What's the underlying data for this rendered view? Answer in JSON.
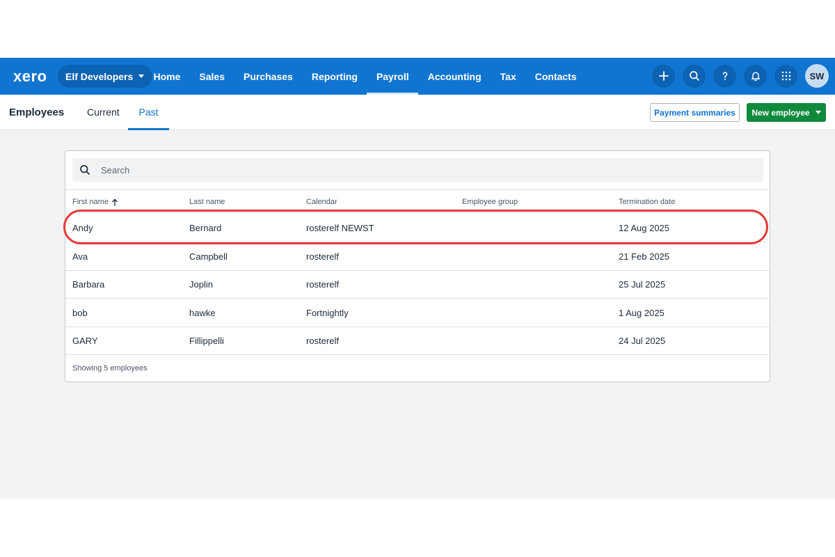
{
  "app": {
    "logo": "xero",
    "org": "Elf Developers",
    "nav": [
      "Home",
      "Sales",
      "Purchases",
      "Reporting",
      "Payroll",
      "Accounting",
      "Tax",
      "Contacts"
    ],
    "active_nav": "Payroll",
    "avatar": "SW",
    "icons": [
      "plus-icon",
      "search-icon",
      "help-icon",
      "bell-icon",
      "apps-grid-icon"
    ]
  },
  "page": {
    "title": "Employees",
    "tabs": [
      "Current",
      "Past"
    ],
    "active_tab": "Past",
    "payment_summaries_label": "Payment summaries",
    "new_employee_label": "New employee"
  },
  "search": {
    "placeholder": "Search"
  },
  "table": {
    "columns": [
      "First name",
      "Last name",
      "Calendar",
      "Employee group",
      "Termination date"
    ],
    "sorted_column": "First name",
    "rows": [
      [
        "Andy",
        "Bernard",
        "rosterelf NEWST",
        "",
        "12 Aug 2025"
      ],
      [
        "Ava",
        "Campbell",
        "rosterelf",
        "",
        "21 Feb 2025"
      ],
      [
        "Barbara",
        "Joplin",
        "rosterelf",
        "",
        "25 Jul 2025"
      ],
      [
        "bob",
        "hawke",
        "Fortnightly",
        "",
        "1 Aug 2025"
      ],
      [
        "GARY",
        "Fillippelli",
        "rosterelf",
        "",
        "24 Jul 2025"
      ]
    ],
    "footer": "Showing 5 employees"
  },
  "colors": {
    "nav_blue": "#1075d0",
    "primary_green": "#0f8a3c",
    "highlight_red": "#e53a3a"
  }
}
